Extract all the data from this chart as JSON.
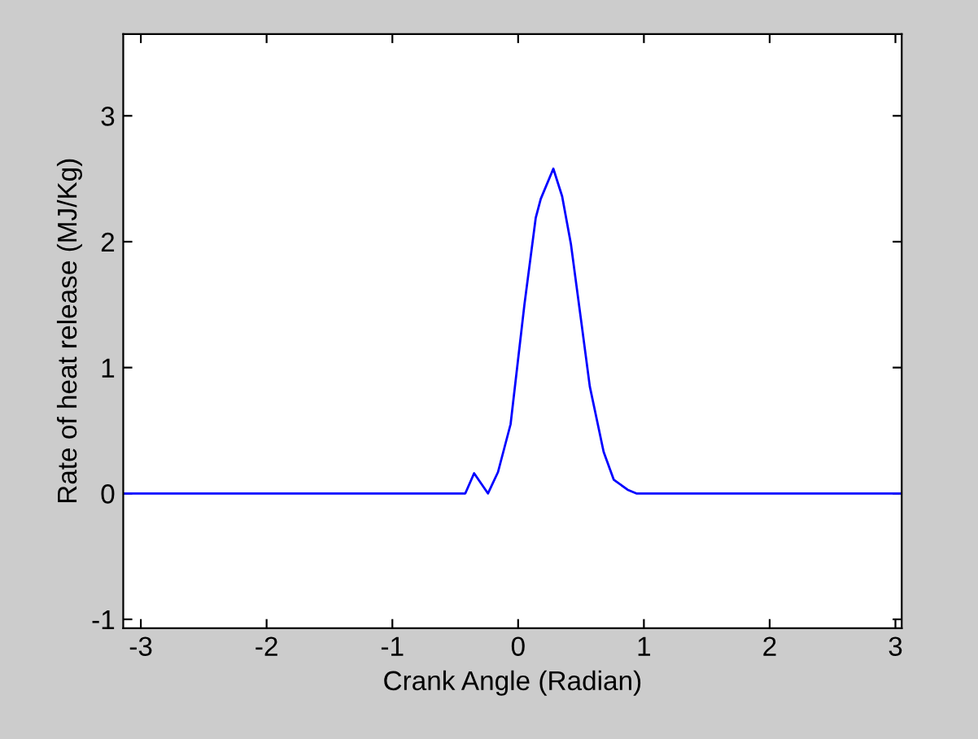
{
  "chart_data": {
    "type": "line",
    "xlabel": "Crank Angle (Radian)",
    "ylabel": "Rate of heat release (MJ/Kg)",
    "x": [
      -3.14,
      -0.42,
      -0.35,
      -0.24,
      -0.16,
      -0.06,
      0.05,
      0.14,
      0.18,
      0.28,
      0.35,
      0.42,
      0.5,
      0.57,
      0.68,
      0.76,
      0.87,
      0.94,
      3.05
    ],
    "series": [
      {
        "color": "#0000ff",
        "values": [
          0,
          0,
          0.16,
          0,
          0.17,
          0.55,
          1.5,
          2.19,
          2.34,
          2.58,
          2.36,
          1.98,
          1.38,
          0.85,
          0.33,
          0.11,
          0.03,
          0,
          0
        ]
      }
    ],
    "xlim": [
      -3.14,
      3.05
    ],
    "ylim": [
      -1.07,
      3.65
    ],
    "xticks": [
      -3,
      -2,
      -1,
      0,
      1,
      2,
      3
    ],
    "yticks": [
      -1,
      0,
      1,
      2,
      3
    ],
    "grid": false,
    "legend": false
  }
}
